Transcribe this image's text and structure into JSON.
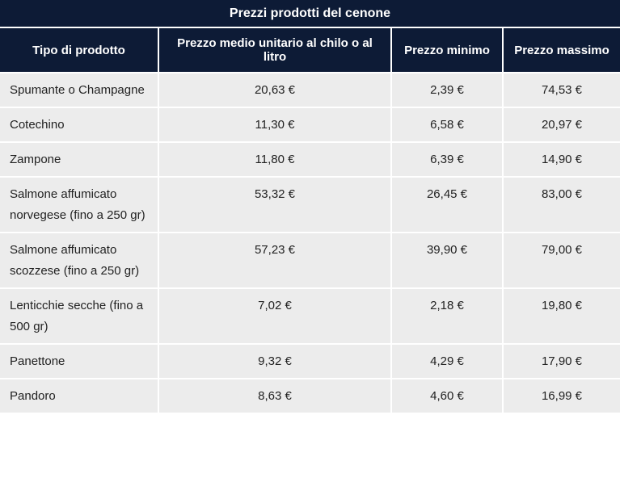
{
  "chart_data": {
    "type": "table",
    "title": "Prezzi prodotti del cenone",
    "columns": [
      "Tipo di prodotto",
      "Prezzo medio unitario al chilo o al litro",
      "Prezzo minimo",
      "Prezzo massimo"
    ],
    "rows": [
      [
        "Spumante o Champagne",
        "20,63 €",
        "2,39 €",
        "74,53 €"
      ],
      [
        "Cotechino",
        "11,30 €",
        "6,58 €",
        "20,97 €"
      ],
      [
        "Zampone",
        "11,80 €",
        "6,39 €",
        "14,90 €"
      ],
      [
        "Salmone affumicato norvegese (fino a 250 gr)",
        "53,32 €",
        "26,45 €",
        "83,00 €"
      ],
      [
        "Salmone affumicato scozzese (fino a 250 gr)",
        "57,23 €",
        "39,90 €",
        "79,00 €"
      ],
      [
        "Lenticchie secche (fino a 500 gr)",
        "7,02 €",
        "2,18 €",
        "19,80 €"
      ],
      [
        "Panettone",
        "9,32 €",
        "4,29 €",
        "17,90 €"
      ],
      [
        "Pandoro",
        "8,63 €",
        "4,60 €",
        "16,99 €"
      ]
    ]
  },
  "colors": {
    "header_bg": "#0d1b36",
    "row_bg": "#ececec",
    "text": "#222222"
  }
}
